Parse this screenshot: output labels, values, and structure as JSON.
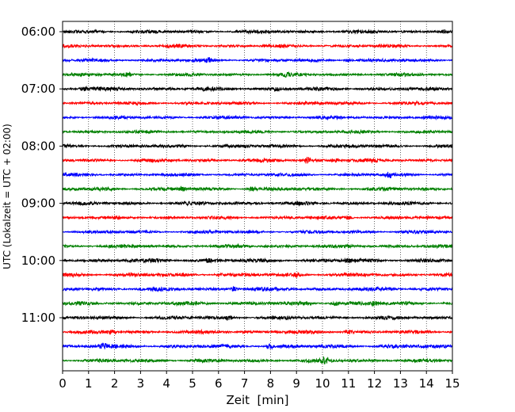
{
  "chart_data": {
    "type": "line",
    "title": "",
    "xlabel": "Zeit  [min]",
    "ylabel": "UTC (Lokalzeit = UTC + 02:00)",
    "xlim": [
      0,
      15
    ],
    "x_ticks": [
      0,
      1,
      2,
      3,
      4,
      5,
      6,
      7,
      8,
      9,
      10,
      11,
      12,
      13,
      14,
      15
    ],
    "y_tick_labels": [
      "06:00",
      "07:00",
      "08:00",
      "09:00",
      "10:00",
      "11:00"
    ],
    "grid": "vertical dotted lines at each minute",
    "trace_interval_minutes": 15,
    "start_time": "06:00",
    "traces": [
      {
        "start": "06:00",
        "color": "#000000",
        "base_amplitude": 2.2,
        "events": [
          {
            "minute": 14.7,
            "amp": 1.8
          }
        ]
      },
      {
        "start": "06:15",
        "color": "#ff0000",
        "base_amplitude": 2.0,
        "events": []
      },
      {
        "start": "06:30",
        "color": "#0000ff",
        "base_amplitude": 2.0,
        "events": [
          {
            "minute": 5.6,
            "amp": 2.2
          },
          {
            "minute": 11.0,
            "amp": 2.0
          }
        ]
      },
      {
        "start": "06:45",
        "color": "#008000",
        "base_amplitude": 2.0,
        "events": [
          {
            "minute": 2.5,
            "amp": 1.6
          },
          {
            "minute": 8.6,
            "amp": 1.6
          }
        ]
      },
      {
        "start": "07:00",
        "color": "#000000",
        "base_amplitude": 2.3,
        "events": [
          {
            "minute": 0.8,
            "amp": 2.2
          },
          {
            "minute": 8.2,
            "amp": 2.0
          }
        ]
      },
      {
        "start": "07:15",
        "color": "#ff0000",
        "base_amplitude": 2.0,
        "events": []
      },
      {
        "start": "07:30",
        "color": "#0000ff",
        "base_amplitude": 2.0,
        "events": []
      },
      {
        "start": "07:45",
        "color": "#008000",
        "base_amplitude": 2.0,
        "events": []
      },
      {
        "start": "08:00",
        "color": "#000000",
        "base_amplitude": 2.2,
        "events": []
      },
      {
        "start": "08:15",
        "color": "#ff0000",
        "base_amplitude": 2.2,
        "events": [
          {
            "minute": 9.4,
            "amp": 3.2
          },
          {
            "minute": 10.5,
            "amp": 2.4
          }
        ]
      },
      {
        "start": "08:30",
        "color": "#0000ff",
        "base_amplitude": 2.0,
        "events": [
          {
            "minute": 12.6,
            "amp": 2.6
          }
        ]
      },
      {
        "start": "08:45",
        "color": "#008000",
        "base_amplitude": 2.2,
        "events": [
          {
            "minute": 4.6,
            "amp": 2.2
          },
          {
            "minute": 7.3,
            "amp": 2.0
          }
        ]
      },
      {
        "start": "09:00",
        "color": "#000000",
        "base_amplitude": 2.2,
        "events": []
      },
      {
        "start": "09:15",
        "color": "#ff0000",
        "base_amplitude": 2.0,
        "events": [
          {
            "minute": 11.0,
            "amp": 2.0
          }
        ]
      },
      {
        "start": "09:30",
        "color": "#0000ff",
        "base_amplitude": 2.0,
        "events": []
      },
      {
        "start": "09:45",
        "color": "#008000",
        "base_amplitude": 2.2,
        "events": []
      },
      {
        "start": "10:00",
        "color": "#000000",
        "base_amplitude": 2.4,
        "events": [
          {
            "minute": 5.6,
            "amp": 2.2
          },
          {
            "minute": 11.0,
            "amp": 2.0
          }
        ]
      },
      {
        "start": "10:15",
        "color": "#ff0000",
        "base_amplitude": 2.2,
        "events": [
          {
            "minute": 6.0,
            "amp": 2.0
          },
          {
            "minute": 9.0,
            "amp": 2.0
          }
        ]
      },
      {
        "start": "10:30",
        "color": "#0000ff",
        "base_amplitude": 2.4,
        "events": [
          {
            "minute": 6.6,
            "amp": 2.4
          }
        ]
      },
      {
        "start": "10:45",
        "color": "#008000",
        "base_amplitude": 2.4,
        "events": [
          {
            "minute": 10.5,
            "amp": 2.2
          },
          {
            "minute": 12.0,
            "amp": 2.0
          }
        ]
      },
      {
        "start": "11:00",
        "color": "#000000",
        "base_amplitude": 2.2,
        "events": [
          {
            "minute": 6.4,
            "amp": 2.0
          }
        ]
      },
      {
        "start": "11:15",
        "color": "#ff0000",
        "base_amplitude": 2.2,
        "events": [
          {
            "minute": 1.9,
            "amp": 2.0
          },
          {
            "minute": 11.0,
            "amp": 2.0
          }
        ]
      },
      {
        "start": "11:30",
        "color": "#0000ff",
        "base_amplitude": 2.4,
        "events": [
          {
            "minute": 1.6,
            "amp": 2.8
          },
          {
            "minute": 8.0,
            "amp": 2.2
          }
        ]
      },
      {
        "start": "11:45",
        "color": "#008000",
        "base_amplitude": 2.2,
        "events": [
          {
            "minute": 10.1,
            "amp": 2.8
          }
        ]
      }
    ]
  }
}
